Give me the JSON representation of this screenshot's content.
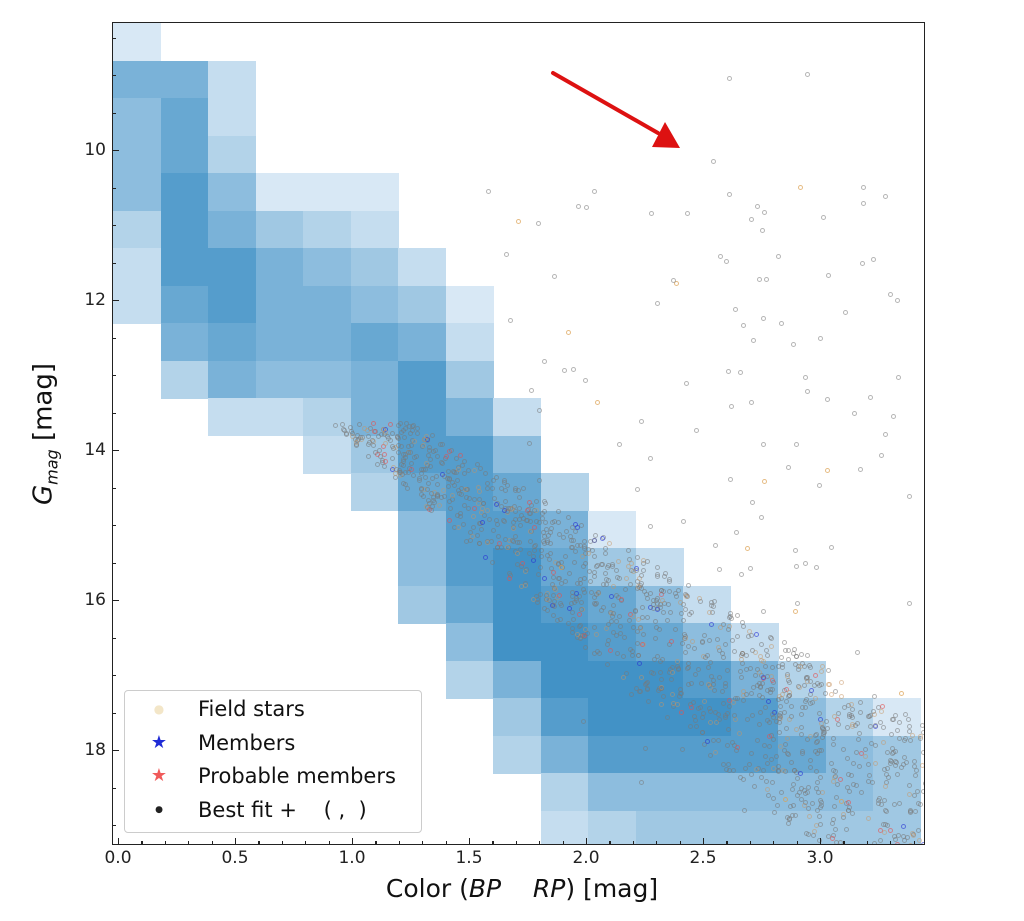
{
  "chart_data": {
    "type": "heatmap",
    "title": "",
    "xlabel": "Color (BP − RP) [mag]",
    "xlabel_parts": {
      "pre": "Color (",
      "bp": "BP",
      "mid": "    ",
      "rp": "RP",
      "post": ") [mag]"
    },
    "ylabel": "G_mag [mag]",
    "ylabel_parts": {
      "g": "G",
      "sub": "mag",
      "unit": " [mag]"
    },
    "xlim": [
      0.0,
      3.45
    ],
    "ylim": [
      19.3,
      8.3
    ],
    "y_inverted": true,
    "grid": false,
    "x_ticks": [
      "0.0",
      "0.5",
      "1.0",
      "1.5",
      "2.0",
      "2.5",
      "3.0"
    ],
    "y_ticks": [
      "10",
      "12",
      "14",
      "16",
      "18"
    ],
    "bin_width_color": 0.2,
    "bin_height_mag": 0.5,
    "colormap": "Blues",
    "density_grid_note": "rows from top (G≈8.3) downward in 0.5 mag steps; columns from color −0.02 rightward in 0.2 mag steps; values are relative density 0-9",
    "density_grid": [
      [
        1,
        0,
        0,
        0,
        0,
        0,
        0,
        0,
        0,
        0,
        0,
        0,
        0,
        0,
        0,
        0,
        0
      ],
      [
        6,
        6,
        2,
        0,
        0,
        0,
        0,
        0,
        0,
        0,
        0,
        0,
        0,
        0,
        0,
        0,
        0
      ],
      [
        5,
        7,
        2,
        0,
        0,
        0,
        0,
        0,
        0,
        0,
        0,
        0,
        0,
        0,
        0,
        0,
        0
      ],
      [
        5,
        7,
        3,
        0,
        0,
        0,
        0,
        0,
        0,
        0,
        0,
        0,
        0,
        0,
        0,
        0,
        0
      ],
      [
        5,
        8,
        5,
        1,
        1,
        1,
        0,
        0,
        0,
        0,
        0,
        0,
        0,
        0,
        0,
        0,
        0
      ],
      [
        3,
        8,
        6,
        4,
        3,
        2,
        0,
        0,
        0,
        0,
        0,
        0,
        0,
        0,
        0,
        0,
        0
      ],
      [
        2,
        8,
        8,
        6,
        5,
        4,
        2,
        0,
        0,
        0,
        0,
        0,
        0,
        0,
        0,
        0,
        0
      ],
      [
        2,
        7,
        8,
        6,
        6,
        5,
        4,
        1,
        0,
        0,
        0,
        0,
        0,
        0,
        0,
        0,
        0
      ],
      [
        0,
        6,
        7,
        6,
        6,
        7,
        6,
        2,
        0,
        0,
        0,
        0,
        0,
        0,
        0,
        0,
        0
      ],
      [
        0,
        3,
        6,
        5,
        5,
        6,
        8,
        4,
        0,
        0,
        0,
        0,
        0,
        0,
        0,
        0,
        0
      ],
      [
        0,
        0,
        2,
        2,
        3,
        6,
        8,
        6,
        2,
        0,
        0,
        0,
        0,
        0,
        0,
        0,
        0
      ],
      [
        0,
        0,
        0,
        0,
        2,
        4,
        8,
        8,
        5,
        0,
        0,
        0,
        0,
        0,
        0,
        0,
        0
      ],
      [
        0,
        0,
        0,
        0,
        0,
        3,
        7,
        8,
        7,
        3,
        0,
        0,
        0,
        0,
        0,
        0,
        0
      ],
      [
        0,
        0,
        0,
        0,
        0,
        0,
        5,
        8,
        8,
        6,
        1,
        0,
        0,
        0,
        0,
        0,
        0
      ],
      [
        0,
        0,
        0,
        0,
        0,
        0,
        5,
        8,
        9,
        7,
        4,
        2,
        0,
        0,
        0,
        0,
        0
      ],
      [
        0,
        0,
        0,
        0,
        0,
        0,
        4,
        7,
        9,
        8,
        7,
        5,
        2,
        0,
        0,
        0,
        0
      ],
      [
        0,
        0,
        0,
        0,
        0,
        0,
        0,
        5,
        9,
        9,
        8,
        7,
        5,
        2,
        0,
        0,
        0
      ],
      [
        0,
        0,
        0,
        0,
        0,
        0,
        0,
        3,
        6,
        9,
        9,
        9,
        8,
        6,
        3,
        0,
        0
      ],
      [
        0,
        0,
        0,
        0,
        0,
        0,
        0,
        0,
        4,
        8,
        9,
        9,
        9,
        8,
        5,
        3,
        1
      ],
      [
        0,
        0,
        0,
        0,
        0,
        0,
        0,
        0,
        3,
        6,
        8,
        8,
        8,
        8,
        7,
        5,
        4
      ],
      [
        0,
        0,
        0,
        0,
        0,
        0,
        0,
        0,
        0,
        3,
        5,
        5,
        5,
        5,
        5,
        5,
        4
      ],
      [
        0,
        0,
        0,
        0,
        0,
        0,
        0,
        0,
        0,
        2,
        3,
        4,
        4,
        4,
        4,
        4,
        4
      ]
    ],
    "legend": {
      "position": "lower left",
      "entries": [
        {
          "label": "Field stars",
          "marker": "•",
          "color": "#f3e6c8"
        },
        {
          "label": "Members",
          "marker": "★",
          "color": "#1f2bd6"
        },
        {
          "label": "Probable members",
          "marker": "★",
          "color": "#f05a5a"
        },
        {
          "label": "Best fit +    ( ,  )",
          "marker": "•",
          "color": "#222222"
        }
      ]
    },
    "annotation": {
      "type": "arrow",
      "color": "#dd1111",
      "from": [
        1.87,
        8.7
      ],
      "to": [
        2.4,
        10.0
      ]
    },
    "scatter_description": "Dense grey field-star scatter along the sequence (color 1.0-3.4, G 13.5-19.3) with sparse outliers up to G≈9; a few blue member and red probable-member markers"
  },
  "colors": {
    "cell_base": "#2b7bba",
    "axis": "#222222",
    "arrow": "#dd1111",
    "scatter": "#8a8a8a"
  }
}
